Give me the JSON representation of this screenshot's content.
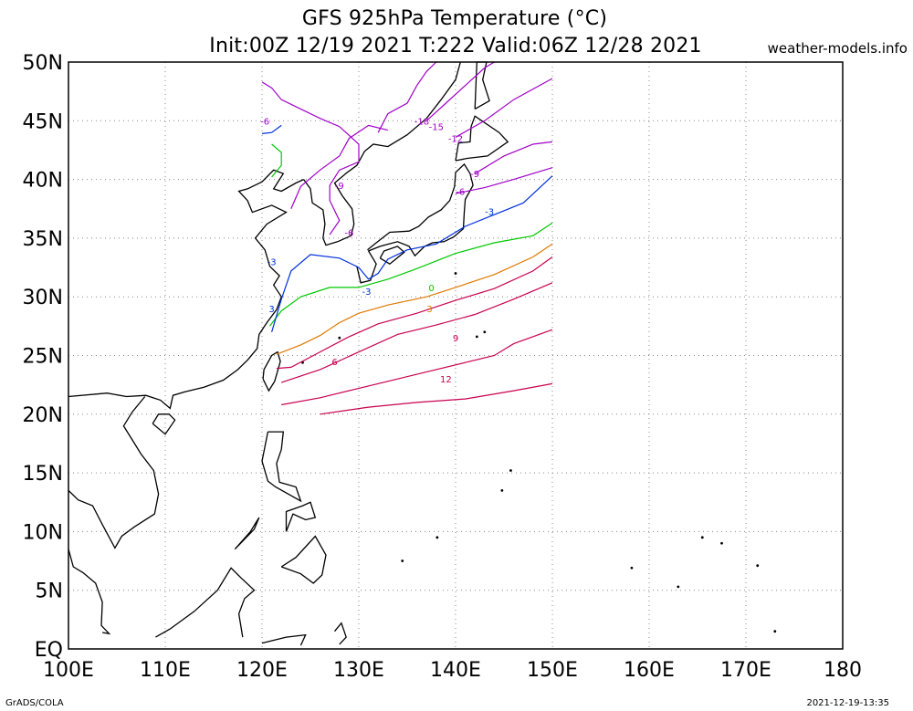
{
  "header": {
    "title_line1": "GFS 925hPa Temperature (°C)",
    "title_line2": "Init:00Z 12/19 2021 T:222 Valid:06Z 12/28 2021",
    "site": "weather-models.info"
  },
  "footer": {
    "left": "GrADS/COLA",
    "right": "2021-12-19-13:35"
  },
  "axes": {
    "x_ticks": [
      "100E",
      "110E",
      "120E",
      "130E",
      "140E",
      "150E",
      "160E",
      "170E",
      "180"
    ],
    "y_ticks": [
      "50N",
      "45N",
      "40N",
      "35N",
      "30N",
      "25N",
      "20N",
      "15N",
      "10N",
      "5N",
      "EQ"
    ]
  },
  "map": {
    "lon_range": [
      100,
      180
    ],
    "lat_range": [
      0,
      50
    ],
    "data_domain": {
      "lon": [
        120,
        150
      ],
      "lat": [
        20,
        50
      ]
    },
    "contour_labels": [
      {
        "text": "-18",
        "lon": 136.5,
        "lat": 45.0,
        "color": "#a000c8"
      },
      {
        "text": "-15",
        "lon": 138.0,
        "lat": 44.5,
        "color": "#a000c8"
      },
      {
        "text": "-12",
        "lon": 140.0,
        "lat": 43.5,
        "color": "#a000c8"
      },
      {
        "text": "-9",
        "lon": 142.0,
        "lat": 40.5,
        "color": "#a000c8"
      },
      {
        "text": "-9",
        "lon": 128.0,
        "lat": 39.5,
        "color": "#a000c8"
      },
      {
        "text": "-6",
        "lon": 140.5,
        "lat": 39.0,
        "color": "#a000c8"
      },
      {
        "text": "-6",
        "lon": 120.3,
        "lat": 45.0,
        "color": "#a000c8"
      },
      {
        "text": "-6",
        "lon": 129.0,
        "lat": 35.5,
        "color": "#a000c8"
      },
      {
        "text": "-3",
        "lon": 143.5,
        "lat": 37.3,
        "color": "#0030dc"
      },
      {
        "text": "-3",
        "lon": 121.0,
        "lat": 33.0,
        "color": "#0030dc"
      },
      {
        "text": "-3",
        "lon": 130.8,
        "lat": 30.5,
        "color": "#0030dc"
      },
      {
        "text": "3",
        "lon": 121.0,
        "lat": 29.0,
        "color": "#0030dc"
      },
      {
        "text": "0",
        "lon": 137.5,
        "lat": 30.8,
        "color": "#00c800"
      },
      {
        "text": "3",
        "lon": 137.3,
        "lat": 29.0,
        "color": "#e07800"
      },
      {
        "text": "6",
        "lon": 127.5,
        "lat": 24.5,
        "color": "#c80050"
      },
      {
        "text": "9",
        "lon": 140.0,
        "lat": 26.5,
        "color": "#c80050"
      },
      {
        "text": "12",
        "lon": 139.0,
        "lat": 23.0,
        "color": "#c80050"
      }
    ],
    "contours": [
      {
        "color": "#c80050",
        "points": [
          [
            126,
            20
          ],
          [
            131,
            20.6
          ],
          [
            136,
            21.0
          ],
          [
            141,
            21.3
          ],
          [
            146,
            22.0
          ],
          [
            150,
            22.6
          ]
        ]
      },
      {
        "color": "#c80050",
        "points": [
          [
            122,
            20.8
          ],
          [
            126,
            21.4
          ],
          [
            131,
            22.4
          ],
          [
            136,
            23.4
          ],
          [
            141,
            24.4
          ],
          [
            144,
            25.0
          ],
          [
            146,
            26.0
          ],
          [
            150,
            27.2
          ]
        ]
      },
      {
        "color": "#c80050",
        "points": [
          [
            122,
            22.7
          ],
          [
            126,
            23.8
          ],
          [
            130,
            25.3
          ],
          [
            134,
            26.8
          ],
          [
            138,
            27.6
          ],
          [
            142,
            28.5
          ],
          [
            146,
            29.8
          ],
          [
            150,
            31.2
          ]
        ]
      },
      {
        "color": "#c80050",
        "points": [
          [
            121.5,
            23.9
          ],
          [
            123,
            24.0
          ],
          [
            126,
            25.3
          ],
          [
            129,
            26.6
          ],
          [
            132,
            27.7
          ],
          [
            136,
            28.6
          ],
          [
            140,
            29.7
          ],
          [
            144,
            30.7
          ],
          [
            148,
            32.2
          ],
          [
            150,
            33.4
          ]
        ]
      },
      {
        "color": "#e07800",
        "points": [
          [
            121.5,
            25.1
          ],
          [
            124,
            25.9
          ],
          [
            126,
            26.7
          ],
          [
            128,
            27.8
          ],
          [
            130,
            28.6
          ],
          [
            133,
            29.3
          ],
          [
            137,
            30.0
          ],
          [
            140,
            30.8
          ],
          [
            144,
            31.9
          ],
          [
            148,
            33.4
          ],
          [
            150,
            34.5
          ]
        ]
      },
      {
        "color": "#00c800",
        "points": [
          [
            120.8,
            27.5
          ],
          [
            122,
            28.8
          ],
          [
            124,
            30.0
          ],
          [
            127,
            30.8
          ],
          [
            130,
            30.8
          ],
          [
            133,
            31.5
          ],
          [
            136,
            32.4
          ],
          [
            140,
            33.7
          ],
          [
            144,
            34.6
          ],
          [
            148,
            35.2
          ],
          [
            150,
            36.3
          ]
        ]
      },
      {
        "color": "#00c800",
        "points": [
          [
            121,
            40.2
          ],
          [
            122,
            41.2
          ],
          [
            122,
            42.3
          ],
          [
            121,
            43.0
          ]
        ]
      },
      {
        "color": "#0030dc",
        "points": [
          [
            121,
            27.0
          ],
          [
            122,
            29.8
          ],
          [
            123,
            32.2
          ],
          [
            125,
            33.6
          ],
          [
            128,
            33.3
          ],
          [
            130,
            32.5
          ],
          [
            131,
            31.5
          ],
          [
            132,
            32.0
          ],
          [
            133,
            33.2
          ],
          [
            135,
            34.0
          ],
          [
            138,
            34.5
          ],
          [
            141,
            36.0
          ],
          [
            144,
            37.0
          ],
          [
            147,
            38.0
          ],
          [
            150,
            40.3
          ]
        ]
      },
      {
        "color": "#0030dc",
        "points": [
          [
            120,
            43.9
          ],
          [
            121,
            44.0
          ],
          [
            122,
            44.6
          ]
        ]
      },
      {
        "color": "#a000c8",
        "points": [
          [
            140,
            38.8
          ],
          [
            143,
            39.3
          ],
          [
            146,
            40.0
          ],
          [
            150,
            41.0
          ]
        ]
      },
      {
        "color": "#a000c8",
        "points": [
          [
            142,
            40.5
          ],
          [
            145,
            42.0
          ],
          [
            148,
            43.0
          ],
          [
            150,
            43.2
          ]
        ]
      },
      {
        "color": "#a000c8",
        "points": [
          [
            140,
            43.6
          ],
          [
            143,
            45.0
          ],
          [
            146,
            46.8
          ],
          [
            150,
            48.6
          ]
        ]
      },
      {
        "color": "#a000c8",
        "points": [
          [
            137,
            45.0
          ],
          [
            139,
            46.5
          ],
          [
            141,
            48.0
          ],
          [
            143,
            49.5
          ],
          [
            144,
            50
          ]
        ]
      },
      {
        "color": "#a000c8",
        "points": [
          [
            127,
            35.3
          ],
          [
            128,
            36.5
          ],
          [
            127,
            38.2
          ],
          [
            127,
            39.5
          ],
          [
            128,
            40.8
          ],
          [
            130,
            41.5
          ],
          [
            130,
            43.0
          ],
          [
            128,
            44.5
          ],
          [
            126,
            45.2
          ],
          [
            124,
            46.0
          ],
          [
            122,
            46.8
          ],
          [
            121,
            47.8
          ],
          [
            120,
            48.3
          ]
        ]
      },
      {
        "color": "#a000c8",
        "points": [
          [
            132,
            44.0
          ],
          [
            133,
            45.6
          ],
          [
            135,
            46.5
          ],
          [
            136,
            48.0
          ],
          [
            137,
            49.2
          ],
          [
            138,
            50
          ]
        ]
      },
      {
        "color": "#a000c8",
        "points": [
          [
            123,
            37.5
          ],
          [
            124,
            39.4
          ],
          [
            126,
            40.8
          ],
          [
            128,
            42.0
          ],
          [
            129,
            43.5
          ],
          [
            131,
            44.6
          ],
          [
            133,
            44.2
          ]
        ]
      }
    ],
    "land_color": "#000000",
    "grid": true
  }
}
